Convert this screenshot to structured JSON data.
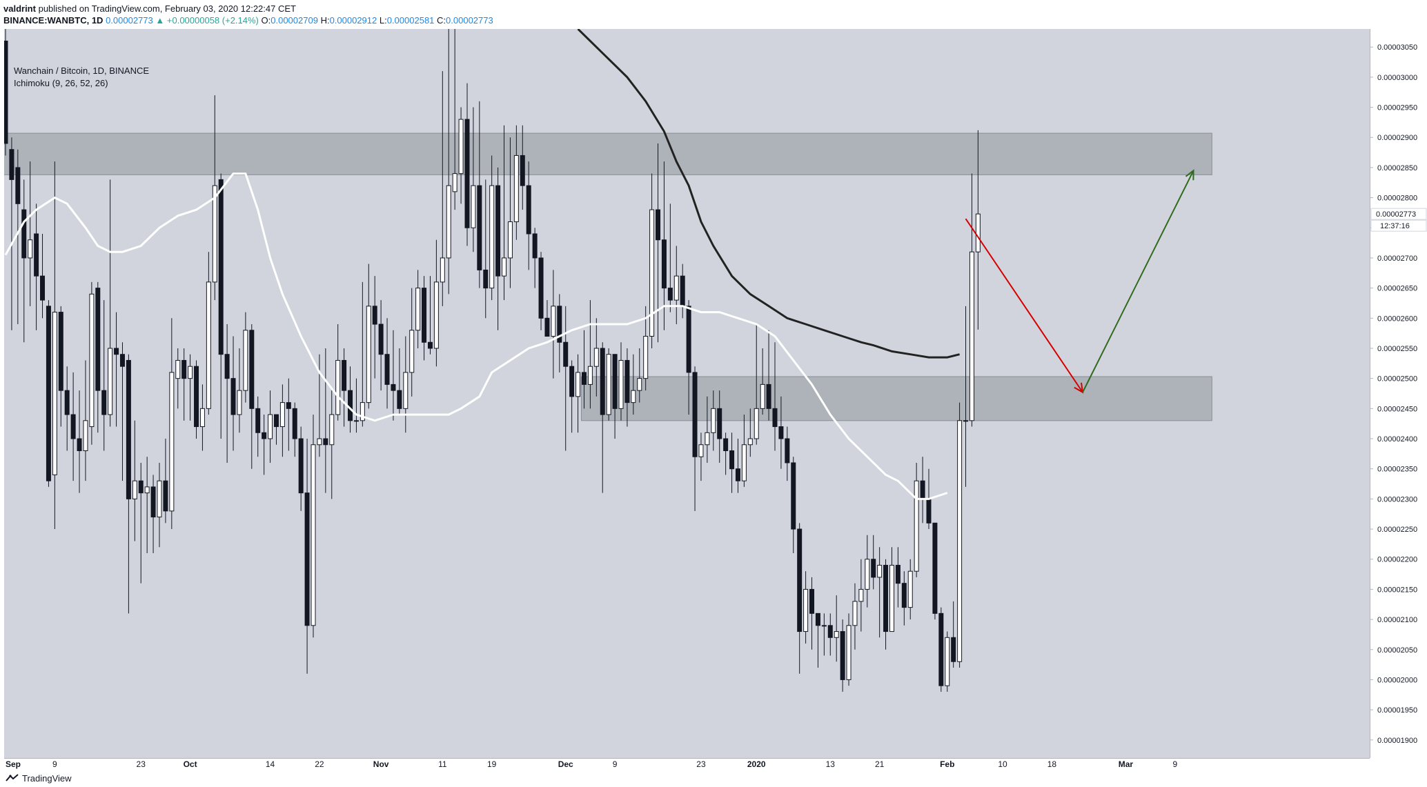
{
  "header": {
    "author": "valdrint",
    "published_text": "published on TradingView.com, February 03, 2020 12:22:47 CET",
    "symbol": "BINANCE:WANBTC, 1D",
    "price": "0.00002773",
    "change_arrow": "▲",
    "change": "+0.00000058 (+2.14%)",
    "o_label": "O:",
    "o_value": "0.00002709",
    "h_label": "H:",
    "h_value": "0.00002912",
    "l_label": "L:",
    "l_value": "0.00002581",
    "c_label": "C:",
    "c_value": "0.00002773"
  },
  "legend": {
    "title": "Wanchain / Bitcoin, 1D, BINANCE",
    "indicator": "Ichimoku (9, 26, 52, 26)"
  },
  "price_tag": {
    "price": "0.00002773",
    "countdown": "12:37:16"
  },
  "footer": {
    "brand": "TradingView",
    "logo_icon": "tradingview-logo-icon"
  },
  "colors": {
    "background": "#d1d4dc",
    "zone": "#a8abb3",
    "candle_up_fill": "#ffffff",
    "candle_down_fill": "#131722",
    "lagging_line": "#ffffff",
    "cloud_line": "#222222",
    "arrow_down": "#d50000",
    "arrow_up": "#2e6b1e"
  },
  "chart_data": {
    "type": "candlestick",
    "title": "Wanchain / Bitcoin, 1D, BINANCE",
    "ylim": [
      1.87e-05,
      3.08e-05
    ],
    "price_ticks": [
      "0.00003050",
      "0.00003000",
      "0.00002950",
      "0.00002900",
      "0.00002850",
      "0.00002800",
      "0.00002750",
      "0.00002700",
      "0.00002650",
      "0.00002600",
      "0.00002550",
      "0.00002500",
      "0.00002450",
      "0.00002400",
      "0.00002350",
      "0.00002300",
      "0.00002250",
      "0.00002200",
      "0.00002150",
      "0.00002100",
      "0.00002050",
      "0.00002000",
      "0.00001950",
      "0.00001900"
    ],
    "price_tick_values": [
      3.05,
      3.0,
      2.95,
      2.9,
      2.85,
      2.8,
      2.75,
      2.7,
      2.65,
      2.6,
      2.55,
      2.5,
      2.45,
      2.4,
      2.35,
      2.3,
      2.25,
      2.2,
      2.15,
      2.1,
      2.05,
      2.0,
      1.95,
      1.9
    ],
    "time_labels": [
      {
        "label": "Sep",
        "day": 0
      },
      {
        "label": "9",
        "day": 8
      },
      {
        "label": "23",
        "day": 22
      },
      {
        "label": "Oct",
        "day": 30
      },
      {
        "label": "14",
        "day": 43
      },
      {
        "label": "22",
        "day": 51
      },
      {
        "label": "Nov",
        "day": 61
      },
      {
        "label": "11",
        "day": 71
      },
      {
        "label": "19",
        "day": 79
      },
      {
        "label": "Dec",
        "day": 91
      },
      {
        "label": "9",
        "day": 99
      },
      {
        "label": "23",
        "day": 113
      },
      {
        "label": "2020",
        "day": 122
      },
      {
        "label": "13",
        "day": 134
      },
      {
        "label": "21",
        "day": 142
      },
      {
        "label": "Feb",
        "day": 153
      },
      {
        "label": "10",
        "day": 162
      },
      {
        "label": "18",
        "day": 170
      },
      {
        "label": "Mar",
        "day": 182
      },
      {
        "label": "9",
        "day": 190
      }
    ],
    "unit_note": "prices in units of 1e-5 BTC",
    "candles": [
      [
        3.06,
        2.89,
        3.08,
        2.87
      ],
      [
        2.88,
        2.83,
        2.9,
        2.58
      ],
      [
        2.85,
        2.79,
        2.88,
        2.59
      ],
      [
        2.78,
        2.7,
        2.83,
        2.56
      ],
      [
        2.7,
        2.73,
        2.86,
        2.62
      ],
      [
        2.74,
        2.67,
        2.79,
        2.58
      ],
      [
        2.67,
        2.63,
        2.74,
        2.6
      ],
      [
        2.62,
        2.33,
        2.63,
        2.32
      ],
      [
        2.34,
        2.61,
        2.86,
        2.25
      ],
      [
        2.61,
        2.48,
        2.62,
        2.42
      ],
      [
        2.48,
        2.44,
        2.52,
        2.38
      ],
      [
        2.44,
        2.4,
        2.51,
        2.33
      ],
      [
        2.4,
        2.38,
        2.48,
        2.31
      ],
      [
        2.38,
        2.43,
        2.53,
        2.33
      ],
      [
        2.42,
        2.64,
        2.66,
        2.39
      ],
      [
        2.65,
        2.48,
        2.66,
        2.41
      ],
      [
        2.48,
        2.44,
        2.63,
        2.38
      ],
      [
        2.44,
        2.55,
        2.83,
        2.42
      ],
      [
        2.55,
        2.54,
        2.61,
        2.42
      ],
      [
        2.54,
        2.52,
        2.56,
        2.33
      ],
      [
        2.53,
        2.3,
        2.54,
        2.11
      ],
      [
        2.3,
        2.33,
        2.43,
        2.23
      ],
      [
        2.33,
        2.31,
        2.36,
        2.16
      ],
      [
        2.31,
        2.32,
        2.37,
        2.21
      ],
      [
        2.32,
        2.27,
        2.34,
        2.21
      ],
      [
        2.27,
        2.33,
        2.36,
        2.22
      ],
      [
        2.33,
        2.28,
        2.4,
        2.26
      ],
      [
        2.28,
        2.51,
        2.6,
        2.25
      ],
      [
        2.5,
        2.53,
        2.55,
        2.45
      ],
      [
        2.53,
        2.5,
        2.55,
        2.43
      ],
      [
        2.5,
        2.52,
        2.54,
        2.43
      ],
      [
        2.52,
        2.42,
        2.53,
        2.4
      ],
      [
        2.42,
        2.45,
        2.49,
        2.38
      ],
      [
        2.45,
        2.66,
        2.71,
        2.44
      ],
      [
        2.66,
        2.82,
        2.97,
        2.63
      ],
      [
        2.83,
        2.54,
        2.84,
        2.4
      ],
      [
        2.54,
        2.5,
        2.59,
        2.36
      ],
      [
        2.5,
        2.44,
        2.57,
        2.38
      ],
      [
        2.44,
        2.48,
        2.55,
        2.41
      ],
      [
        2.48,
        2.58,
        2.61,
        2.46
      ],
      [
        2.58,
        2.45,
        2.59,
        2.35
      ],
      [
        2.45,
        2.41,
        2.47,
        2.37
      ],
      [
        2.41,
        2.4,
        2.44,
        2.34
      ],
      [
        2.4,
        2.44,
        2.48,
        2.36
      ],
      [
        2.44,
        2.42,
        2.44,
        2.39
      ],
      [
        2.42,
        2.46,
        2.49,
        2.37
      ],
      [
        2.46,
        2.45,
        2.5,
        2.38
      ],
      [
        2.45,
        2.4,
        2.46,
        2.37
      ],
      [
        2.4,
        2.31,
        2.42,
        2.28
      ],
      [
        2.31,
        2.09,
        2.4,
        2.01
      ],
      [
        2.09,
        2.39,
        2.44,
        2.07
      ],
      [
        2.39,
        2.4,
        2.54,
        2.37
      ],
      [
        2.4,
        2.39,
        2.55,
        2.31
      ],
      [
        2.39,
        2.44,
        2.48,
        2.3
      ],
      [
        2.44,
        2.53,
        2.59,
        2.43
      ],
      [
        2.53,
        2.48,
        2.55,
        2.42
      ],
      [
        2.48,
        2.43,
        2.52,
        2.41
      ],
      [
        2.43,
        2.43,
        2.5,
        2.41
      ],
      [
        2.43,
        2.46,
        2.66,
        2.42
      ],
      [
        2.46,
        2.62,
        2.69,
        2.45
      ],
      [
        2.62,
        2.59,
        2.67,
        2.5
      ],
      [
        2.59,
        2.54,
        2.63,
        2.48
      ],
      [
        2.54,
        2.49,
        2.6,
        2.45
      ],
      [
        2.49,
        2.48,
        2.58,
        2.43
      ],
      [
        2.48,
        2.45,
        2.55,
        2.44
      ],
      [
        2.45,
        2.51,
        2.57,
        2.41
      ],
      [
        2.51,
        2.58,
        2.65,
        2.47
      ],
      [
        2.58,
        2.65,
        2.68,
        2.55
      ],
      [
        2.65,
        2.56,
        2.67,
        2.53
      ],
      [
        2.56,
        2.55,
        2.67,
        2.54
      ],
      [
        2.55,
        2.66,
        2.73,
        2.52
      ],
      [
        2.66,
        2.7,
        3.01,
        2.62
      ],
      [
        2.7,
        2.82,
        3.35,
        2.64
      ],
      [
        2.81,
        2.84,
        3.1,
        2.78
      ],
      [
        2.84,
        2.93,
        2.95,
        2.79
      ],
      [
        2.93,
        2.75,
        2.99,
        2.72
      ],
      [
        2.75,
        2.82,
        2.95,
        2.71
      ],
      [
        2.82,
        2.68,
        2.96,
        2.65
      ],
      [
        2.68,
        2.65,
        2.83,
        2.6
      ],
      [
        2.65,
        2.82,
        2.87,
        2.63
      ],
      [
        2.82,
        2.67,
        2.85,
        2.58
      ],
      [
        2.67,
        2.7,
        2.92,
        2.63
      ],
      [
        2.7,
        2.76,
        2.9,
        2.65
      ],
      [
        2.76,
        2.87,
        2.92,
        2.73
      ],
      [
        2.87,
        2.82,
        2.92,
        2.78
      ],
      [
        2.82,
        2.74,
        2.86,
        2.68
      ],
      [
        2.74,
        2.7,
        2.75,
        2.65
      ],
      [
        2.7,
        2.6,
        2.71,
        2.58
      ],
      [
        2.6,
        2.57,
        2.63,
        2.57
      ],
      [
        2.57,
        2.62,
        2.68,
        2.5
      ],
      [
        2.62,
        2.56,
        2.64,
        2.51
      ],
      [
        2.56,
        2.52,
        2.62,
        2.38
      ],
      [
        2.52,
        2.47,
        2.53,
        2.41
      ],
      [
        2.47,
        2.51,
        2.54,
        2.41
      ],
      [
        2.51,
        2.49,
        2.58,
        2.45
      ],
      [
        2.49,
        2.52,
        2.63,
        2.45
      ],
      [
        2.52,
        2.55,
        2.6,
        2.47
      ],
      [
        2.55,
        2.44,
        2.56,
        2.31
      ],
      [
        2.44,
        2.54,
        2.55,
        2.43
      ],
      [
        2.54,
        2.45,
        2.54,
        2.4
      ],
      [
        2.45,
        2.53,
        2.56,
        2.43
      ],
      [
        2.53,
        2.46,
        2.55,
        2.42
      ],
      [
        2.46,
        2.48,
        2.54,
        2.44
      ],
      [
        2.48,
        2.5,
        2.55,
        2.46
      ],
      [
        2.5,
        2.57,
        2.62,
        2.48
      ],
      [
        2.57,
        2.78,
        2.84,
        2.55
      ],
      [
        2.78,
        2.73,
        2.89,
        2.56
      ],
      [
        2.73,
        2.65,
        2.86,
        2.58
      ],
      [
        2.65,
        2.63,
        2.79,
        2.61
      ],
      [
        2.63,
        2.67,
        2.72,
        2.59
      ],
      [
        2.67,
        2.62,
        2.69,
        2.6
      ],
      [
        2.62,
        2.51,
        2.63,
        2.44
      ],
      [
        2.51,
        2.37,
        2.52,
        2.28
      ],
      [
        2.37,
        2.39,
        2.41,
        2.33
      ],
      [
        2.39,
        2.41,
        2.47,
        2.36
      ],
      [
        2.41,
        2.45,
        2.48,
        2.38
      ],
      [
        2.45,
        2.4,
        2.48,
        2.36
      ],
      [
        2.4,
        2.38,
        2.41,
        2.34
      ],
      [
        2.38,
        2.35,
        2.41,
        2.31
      ],
      [
        2.35,
        2.33,
        2.4,
        2.31
      ],
      [
        2.33,
        2.39,
        2.44,
        2.32
      ],
      [
        2.39,
        2.4,
        2.45,
        2.37
      ],
      [
        2.4,
        2.45,
        2.59,
        2.39
      ],
      [
        2.45,
        2.49,
        2.55,
        2.44
      ],
      [
        2.49,
        2.45,
        2.58,
        2.43
      ],
      [
        2.45,
        2.42,
        2.56,
        2.38
      ],
      [
        2.42,
        2.4,
        2.47,
        2.35
      ],
      [
        2.4,
        2.36,
        2.42,
        2.33
      ],
      [
        2.36,
        2.25,
        2.37,
        2.21
      ],
      [
        2.25,
        2.08,
        2.26,
        2.01
      ],
      [
        2.08,
        2.15,
        2.18,
        2.06
      ],
      [
        2.15,
        2.11,
        2.17,
        2.05
      ],
      [
        2.11,
        2.09,
        2.11,
        2.02
      ],
      [
        2.09,
        2.09,
        2.11,
        2.04
      ],
      [
        2.09,
        2.07,
        2.11,
        2.04
      ],
      [
        2.07,
        2.08,
        2.14,
        2.03
      ],
      [
        2.08,
        2.0,
        2.1,
        1.98
      ],
      [
        2.0,
        2.09,
        2.11,
        1.99
      ],
      [
        2.09,
        2.13,
        2.16,
        2.05
      ],
      [
        2.13,
        2.15,
        2.2,
        2.08
      ],
      [
        2.15,
        2.2,
        2.24,
        2.12
      ],
      [
        2.2,
        2.17,
        2.24,
        2.15
      ],
      [
        2.17,
        2.19,
        2.22,
        2.07
      ],
      [
        2.19,
        2.08,
        2.2,
        2.05
      ],
      [
        2.08,
        2.19,
        2.22,
        2.1
      ],
      [
        2.19,
        2.16,
        2.22,
        2.12
      ],
      [
        2.16,
        2.12,
        2.18,
        2.09
      ],
      [
        2.12,
        2.18,
        2.2,
        2.1
      ],
      [
        2.18,
        2.33,
        2.36,
        2.17
      ],
      [
        2.33,
        2.3,
        2.37,
        2.26
      ],
      [
        2.3,
        2.26,
        2.35,
        2.25
      ],
      [
        2.26,
        2.11,
        2.26,
        2.1
      ],
      [
        2.11,
        1.99,
        2.12,
        1.98
      ],
      [
        1.99,
        2.07,
        2.08,
        1.98
      ],
      [
        2.07,
        2.03,
        2.13,
        2.02
      ],
      [
        2.03,
        2.43,
        2.46,
        2.02
      ],
      [
        2.43,
        2.43,
        2.62,
        2.32
      ],
      [
        2.43,
        2.71,
        2.84,
        2.42
      ],
      [
        2.71,
        2.773,
        2.912,
        2.581
      ]
    ],
    "lagging_line": [
      [
        0,
        2.705
      ],
      [
        3,
        2.76
      ],
      [
        5,
        2.78
      ],
      [
        8,
        2.8
      ],
      [
        10,
        2.79
      ],
      [
        13,
        2.75
      ],
      [
        15,
        2.72
      ],
      [
        17,
        2.71
      ],
      [
        19,
        2.71
      ],
      [
        22,
        2.72
      ],
      [
        25,
        2.75
      ],
      [
        28,
        2.77
      ],
      [
        31,
        2.78
      ],
      [
        34,
        2.8
      ],
      [
        37,
        2.84
      ],
      [
        39,
        2.84
      ],
      [
        41,
        2.78
      ],
      [
        43,
        2.7
      ],
      [
        45,
        2.64
      ],
      [
        48,
        2.57
      ],
      [
        51,
        2.51
      ],
      [
        54,
        2.47
      ],
      [
        57,
        2.44
      ],
      [
        60,
        2.43
      ],
      [
        63,
        2.44
      ],
      [
        66,
        2.44
      ],
      [
        69,
        2.44
      ],
      [
        72,
        2.44
      ],
      [
        74,
        2.45
      ],
      [
        77,
        2.47
      ],
      [
        79,
        2.51
      ],
      [
        82,
        2.53
      ],
      [
        85,
        2.55
      ],
      [
        88,
        2.56
      ],
      [
        92,
        2.58
      ],
      [
        95,
        2.59
      ],
      [
        98,
        2.59
      ],
      [
        101,
        2.59
      ],
      [
        104,
        2.6
      ],
      [
        107,
        2.62
      ],
      [
        110,
        2.62
      ],
      [
        113,
        2.61
      ],
      [
        116,
        2.61
      ],
      [
        119,
        2.6
      ],
      [
        122,
        2.59
      ],
      [
        125,
        2.57
      ],
      [
        128,
        2.53
      ],
      [
        131,
        2.49
      ],
      [
        134,
        2.44
      ],
      [
        137,
        2.4
      ],
      [
        140,
        2.37
      ],
      [
        143,
        2.34
      ],
      [
        145,
        2.33
      ],
      [
        148,
        2.3
      ],
      [
        150,
        2.3
      ],
      [
        153,
        2.31
      ]
    ],
    "cloud_line": [
      [
        93,
        3.08
      ],
      [
        97,
        3.04
      ],
      [
        101,
        3.0
      ],
      [
        104,
        2.96
      ],
      [
        107,
        2.91
      ],
      [
        109,
        2.86
      ],
      [
        111,
        2.82
      ],
      [
        113,
        2.76
      ],
      [
        115,
        2.72
      ],
      [
        118,
        2.67
      ],
      [
        121,
        2.64
      ],
      [
        124,
        2.62
      ],
      [
        127,
        2.6
      ],
      [
        130,
        2.59
      ],
      [
        133,
        2.58
      ],
      [
        136,
        2.57
      ],
      [
        139,
        2.56
      ],
      [
        141,
        2.555
      ],
      [
        144,
        2.545
      ],
      [
        147,
        2.54
      ],
      [
        150,
        2.535
      ],
      [
        153,
        2.535
      ],
      [
        155,
        2.54
      ]
    ],
    "zones": [
      {
        "day_start": 0,
        "day_end": 196,
        "top": 2.907,
        "bottom": 2.838
      },
      {
        "day_start": 94,
        "day_end": 196,
        "top": 2.503,
        "bottom": 2.43
      }
    ],
    "arrows": [
      {
        "from": [
          156,
          2.765
        ],
        "to": [
          175,
          2.477
        ],
        "color": "arrow_down"
      },
      {
        "from": [
          175,
          2.477
        ],
        "to": [
          193,
          2.845
        ],
        "color": "arrow_up"
      }
    ]
  }
}
